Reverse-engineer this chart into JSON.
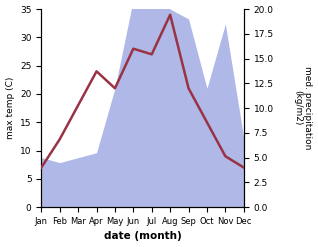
{
  "months": [
    "Jan",
    "Feb",
    "Mar",
    "Apr",
    "May",
    "Jun",
    "Jul",
    "Aug",
    "Sep",
    "Oct",
    "Nov",
    "Dec"
  ],
  "temp": [
    7.0,
    12.0,
    18.0,
    24.0,
    21.0,
    28.0,
    27.0,
    34.0,
    21.0,
    15.0,
    9.0,
    7.0
  ],
  "precip": [
    5.0,
    4.5,
    5.0,
    5.5,
    12.0,
    21.0,
    21.0,
    20.0,
    19.0,
    12.0,
    18.5,
    7.0
  ],
  "temp_color": "#993344",
  "precip_color": "#b0b8e8",
  "xlabel": "date (month)",
  "ylabel_left": "max temp (C)",
  "ylabel_right": "med. precipitation\n(kg/m2)",
  "ylim_left": [
    0,
    35
  ],
  "ylim_right": [
    0,
    20
  ],
  "background_color": "#ffffff",
  "temp_linewidth": 1.8
}
